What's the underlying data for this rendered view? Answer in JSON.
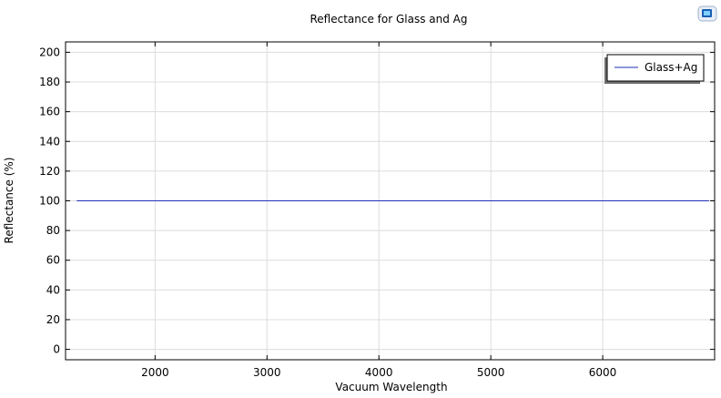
{
  "chart_data": {
    "type": "line",
    "title": "Reflectance for Glass and Ag",
    "xlabel": "Vacuum Wavelength",
    "ylabel": "Reflectance (%)",
    "xlim": [
      1200,
      7000
    ],
    "ylim": [
      -7,
      207
    ],
    "xticks": [
      2000,
      3000,
      4000,
      5000,
      6000
    ],
    "yticks": [
      0,
      20,
      40,
      60,
      80,
      100,
      120,
      140,
      160,
      180,
      200
    ],
    "grid": true,
    "legend": "top-right",
    "series": [
      {
        "name": "Glass+Ag",
        "color": "#1f2fb4",
        "x": [
          1300,
          2000,
          3000,
          4000,
          5000,
          6000,
          6950
        ],
        "y": [
          100,
          100,
          100,
          100,
          100,
          100,
          100
        ]
      }
    ]
  },
  "toolbar": {
    "icon": "image-export-icon"
  }
}
